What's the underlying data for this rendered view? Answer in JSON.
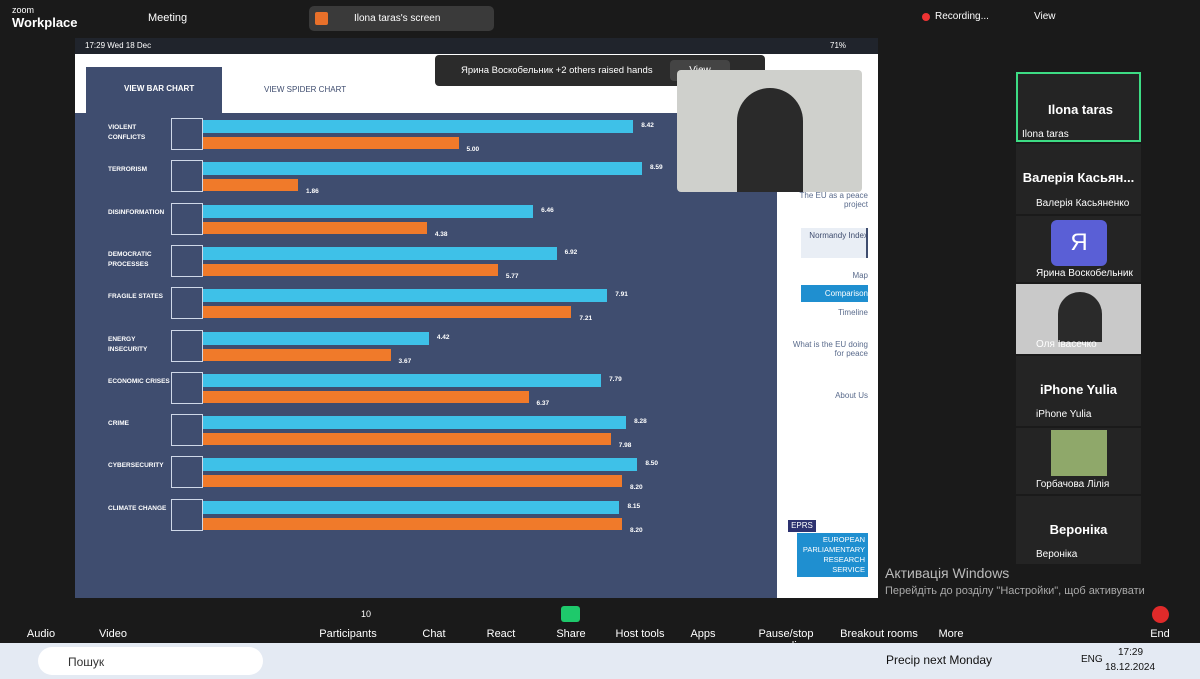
{
  "topbar": {
    "logo_top": "zoom",
    "logo_bottom": "Workplace",
    "meeting": "Meeting",
    "share_label": "Ilona taras's screen",
    "recording": "Recording...",
    "view": "View"
  },
  "shared": {
    "status_time": "17:29  Wed 18 Dec",
    "battery": "71%",
    "tab_bar": "VIEW BAR CHART",
    "tab_spider": "VIEW SPIDER CHART",
    "notification": "Ярина Воскобельник +2 others raised hands",
    "notification_button": "View",
    "nav": [
      "The EU as a peace project",
      "Normandy Index",
      "Map",
      "Comparison",
      "Timeline",
      "What is the EU doing for peace",
      "About Us"
    ],
    "eprs": "EPRS",
    "eprs_name": "EUROPEAN PARLIAMENTARY RESEARCH SERVICE"
  },
  "chart_data": {
    "type": "bar",
    "orientation": "horizontal",
    "categories": [
      "VIOLENT CONFLICTS",
      "TERRORISM",
      "DISINFORMATION",
      "DEMOCRATIC PROCESSES",
      "FRAGILE STATES",
      "ENERGY INSECURITY",
      "ECONOMIC CRISES",
      "CRIME",
      "CYBERSECURITY",
      "CLIMATE CHANGE"
    ],
    "series": [
      {
        "color": "#3ec1e8",
        "values": [
          8.42,
          8.59,
          6.46,
          6.92,
          7.91,
          4.42,
          7.79,
          8.28,
          8.5,
          8.15
        ],
        "value_labels": [
          "8.42",
          "8.59",
          "6.46",
          "6.92",
          "7.91",
          "4.42",
          "7.79",
          "8.28",
          "8.50",
          "8.15"
        ]
      },
      {
        "color": "#f07a2a",
        "values": [
          5,
          1.86,
          4.38,
          5.77,
          7.21,
          3.67,
          6.37,
          7.98,
          8.2,
          8.2
        ],
        "value_labels": [
          "5.00",
          "1.86",
          "4.38",
          "5.77",
          "7.21",
          "3.67",
          "6.37",
          "7.98",
          "8.20",
          "8.20"
        ]
      }
    ]
  },
  "participants": {
    "tile1_name": "Ilona taras",
    "tile1_label": "Ilona taras",
    "tile2_name": "Валерія Касьян...",
    "tile2_label": "Валерія Касьяненко",
    "tile3_avatar": "Я",
    "tile3_label": "Ярина Воскобельник",
    "tile4_label": "Оля Івасечко",
    "tile5_name": "iPhone Yulia",
    "tile5_label": "iPhone Yulia",
    "tile6_label": "Горбачова Лілія",
    "tile7_name": "Вероніка",
    "tile7_label": "Вероніка"
  },
  "watermark": {
    "title": "Активація Windows",
    "text": "Перейдіть до розділу \"Настройки\", щоб активувати Windows."
  },
  "toolbar": {
    "audio": "Audio",
    "video": "Video",
    "participants": "Participants",
    "participants_count": "10",
    "chat": "Chat",
    "react": "React",
    "share": "Share",
    "host_tools": "Host tools",
    "apps": "Apps",
    "recording": "Pause/stop recording",
    "breakout": "Breakout rooms",
    "more": "More",
    "end": "End"
  },
  "taskbar": {
    "search": "Пошук",
    "weather": "Precip next Monday",
    "lang": "ENG",
    "time": "17:29",
    "date": "18.12.2024"
  }
}
